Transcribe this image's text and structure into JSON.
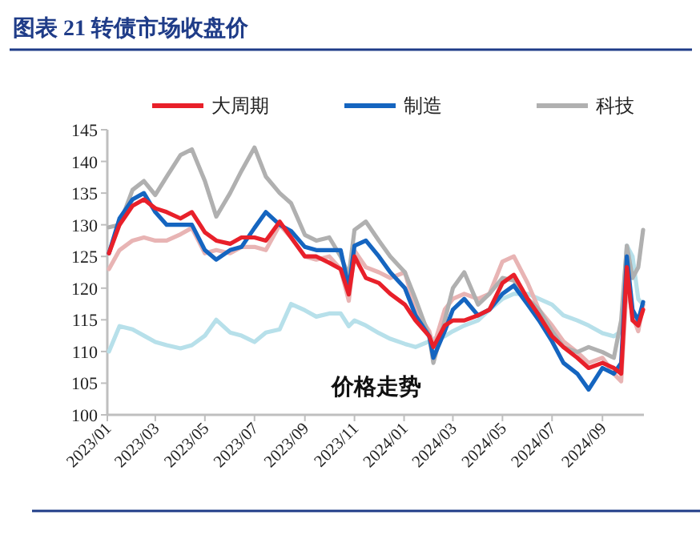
{
  "chart_data": {
    "type": "line",
    "title": "图表 21   转债市场收盘价",
    "annotations": [
      "价格走势"
    ],
    "x": [
      "2023-01-03",
      "2023-01-16",
      "2023-02-01",
      "2023-02-15",
      "2023-03-01",
      "2023-03-15",
      "2023-04-01",
      "2023-04-15",
      "2023-05-01",
      "2023-05-15",
      "2023-06-01",
      "2023-06-15",
      "2023-07-01",
      "2023-07-15",
      "2023-08-01",
      "2023-08-15",
      "2023-09-01",
      "2023-09-15",
      "2023-10-01",
      "2023-10-15",
      "2023-10-25",
      "2023-11-01",
      "2023-11-15",
      "2023-12-01",
      "2023-12-15",
      "2024-01-02",
      "2024-01-15",
      "2024-02-01",
      "2024-02-06",
      "2024-02-20",
      "2024-03-01",
      "2024-03-15",
      "2024-04-01",
      "2024-04-15",
      "2024-05-01",
      "2024-05-15",
      "2024-06-01",
      "2024-06-15",
      "2024-07-01",
      "2024-07-15",
      "2024-08-01",
      "2024-08-15",
      "2024-09-01",
      "2024-09-15",
      "2024-09-24",
      "2024-10-01",
      "2024-10-08",
      "2024-10-15",
      "2024-10-21"
    ],
    "series": [
      {
        "name": "大周期",
        "color": "#e8202a",
        "values": [
          125.5,
          130,
          133,
          134,
          132.6,
          132,
          131,
          132,
          128.8,
          127.5,
          127,
          128,
          128,
          127.5,
          130.5,
          128,
          125,
          125,
          124,
          123,
          119,
          125,
          121.6,
          120.8,
          119.1,
          117.4,
          114.9,
          112.4,
          110.7,
          114.1,
          114.9,
          114.9,
          115.7,
          116.6,
          120.8,
          122.1,
          118.3,
          115.7,
          112.4,
          110.7,
          109,
          107.4,
          108.2,
          107.4,
          106.5,
          123.3,
          114.9,
          114.1,
          116.6
        ]
      },
      {
        "name": "制造",
        "color": "#1565c0",
        "values": [
          125.5,
          131,
          134,
          135,
          132,
          130,
          130,
          130,
          126,
          124.5,
          126,
          126.5,
          129.5,
          132,
          130,
          129,
          126.5,
          126,
          126,
          126,
          120,
          126.7,
          127.5,
          125,
          122.5,
          120,
          115.7,
          112.4,
          109,
          113.2,
          116.6,
          118.3,
          115.7,
          116.6,
          119.1,
          120.4,
          117.4,
          114.9,
          111.6,
          108.2,
          106.5,
          104,
          107.4,
          106.5,
          108.2,
          125,
          116.6,
          114.9,
          117.8
        ]
      },
      {
        "name": "科技",
        "color": "#b0b0b0",
        "values": [
          129.6,
          130,
          135.5,
          136.9,
          134.7,
          137.6,
          141,
          141.9,
          136.9,
          131.3,
          135,
          138.5,
          142.2,
          137.6,
          135,
          133.4,
          128.4,
          127.5,
          128,
          125,
          122,
          129.2,
          130.5,
          127.5,
          125,
          122.5,
          118.3,
          112.4,
          108.2,
          114.9,
          120,
          122.5,
          117.4,
          119.1,
          121.6,
          121.2,
          118.3,
          116.6,
          113.2,
          110.7,
          109.9,
          110.7,
          109.9,
          109,
          114.9,
          126.7,
          121.6,
          123.3,
          129.2
        ]
      },
      {
        "color": "#e8b4b4",
        "values": [
          123,
          126,
          127.5,
          128,
          127.5,
          127.5,
          128.5,
          129.5,
          125.5,
          126,
          125.5,
          126.5,
          126.5,
          126,
          130,
          128,
          125,
          124.5,
          125,
          123,
          118,
          125.9,
          123.3,
          122.5,
          121.6,
          122.5,
          116.6,
          113.2,
          110.7,
          116.6,
          118.3,
          119.1,
          118.3,
          119.1,
          124.2,
          125,
          120.8,
          116.6,
          114.1,
          111.6,
          109.9,
          108.2,
          109,
          106.5,
          105.3,
          120.8,
          115.7,
          113.2,
          117.4
        ]
      },
      {
        "color": "#b7e0ea",
        "values": [
          110,
          114,
          113.5,
          112.5,
          111.5,
          111,
          110.5,
          111,
          112.5,
          115,
          113,
          112.5,
          111.5,
          113,
          113.5,
          117.5,
          116.5,
          115.5,
          116,
          116,
          114,
          114.9,
          114.1,
          112.9,
          112,
          111.2,
          110.7,
          111.6,
          112,
          112.4,
          113.2,
          114.1,
          114.9,
          116.6,
          118.3,
          119.1,
          119.1,
          118.3,
          117.4,
          115.7,
          114.9,
          114.1,
          112.9,
          112.4,
          113.2,
          126.7,
          125,
          118.3,
          117.4
        ]
      }
    ],
    "xlim": [
      "2023-01-01",
      "2024-10-22"
    ],
    "xticks": [
      {
        "value": "2023-01",
        "label": "2023/01"
      },
      {
        "value": "2023-03",
        "label": "2023/03"
      },
      {
        "value": "2023-05",
        "label": "2023/05"
      },
      {
        "value": "2023-07",
        "label": "2023/07"
      },
      {
        "value": "2023-09",
        "label": "2023/09"
      },
      {
        "value": "2023-11",
        "label": "2023/11"
      },
      {
        "value": "2024-01",
        "label": "2024/01"
      },
      {
        "value": "2024-03",
        "label": "2024/03"
      },
      {
        "value": "2024-05",
        "label": "2024/05"
      },
      {
        "value": "2024-07",
        "label": "2024/07"
      },
      {
        "value": "2024-09",
        "label": "2024/09"
      }
    ],
    "ylim": [
      100,
      145
    ],
    "yticks": [
      100,
      105,
      110,
      115,
      120,
      125,
      130,
      135,
      140,
      145
    ],
    "legend": "top"
  }
}
